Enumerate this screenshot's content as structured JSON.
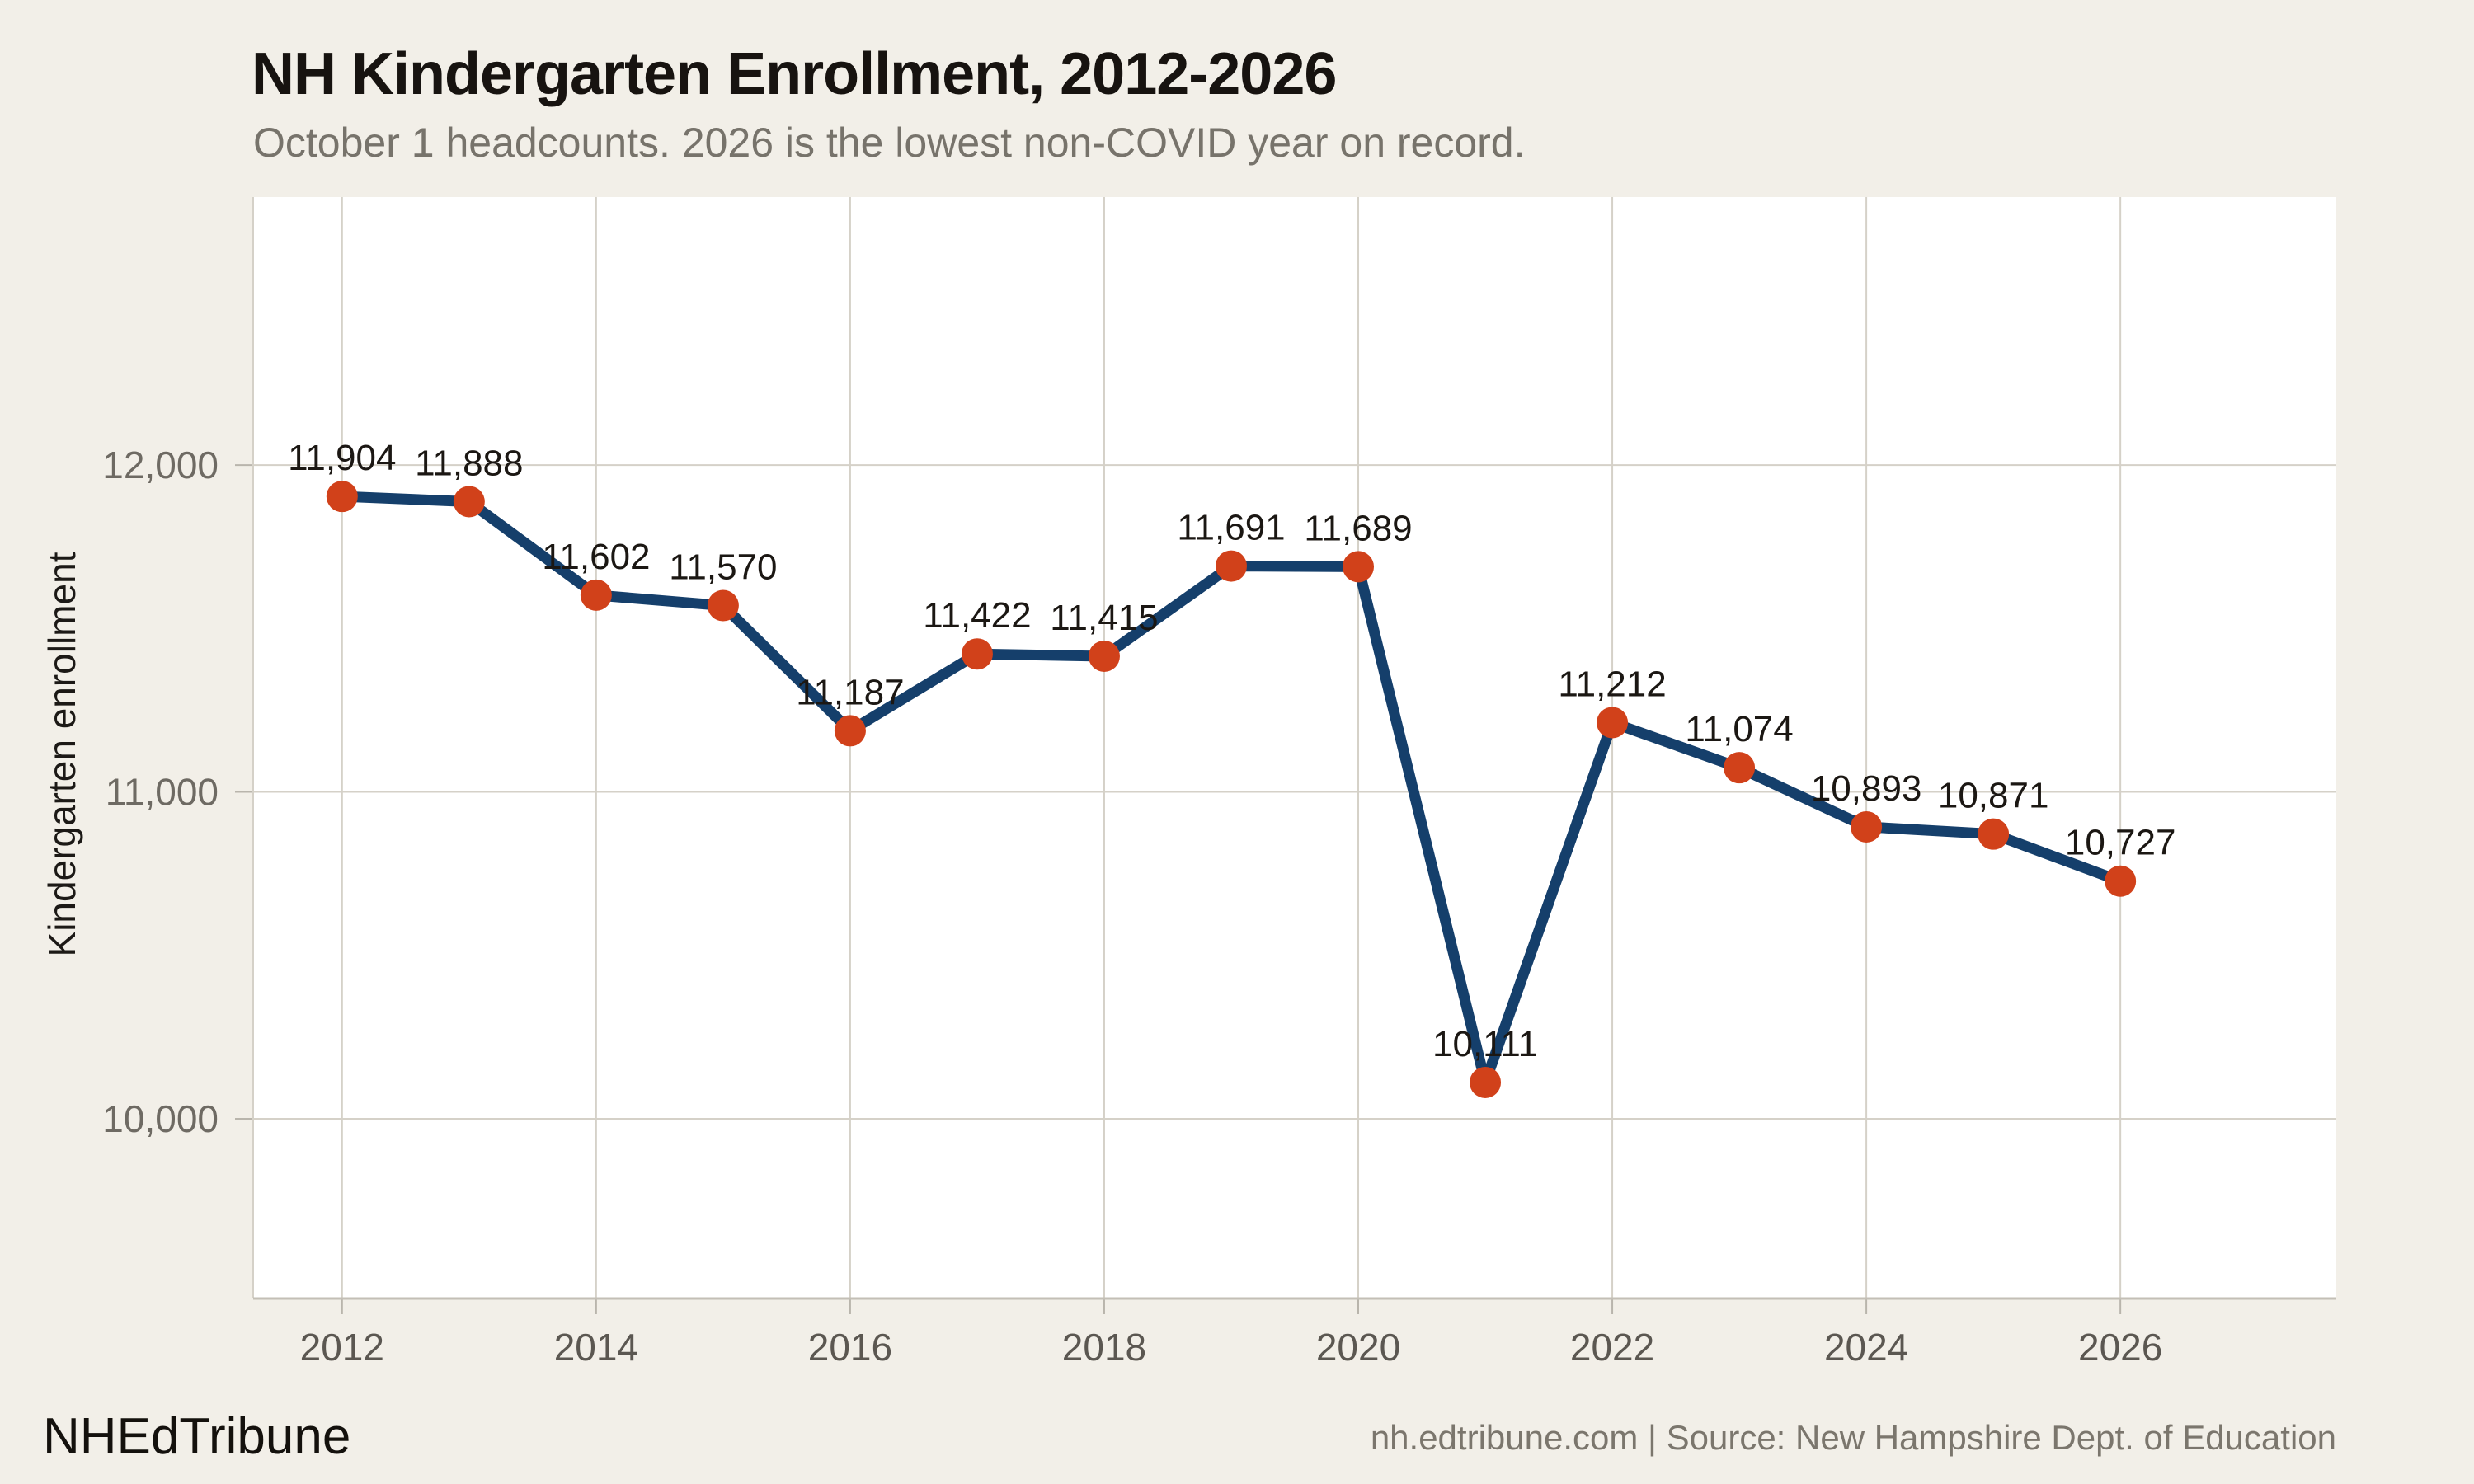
{
  "page": {
    "background": "#f2efe8"
  },
  "header": {
    "title": "NH Kindergarten Enrollment, 2012-2026",
    "subtitle": "October 1 headcounts. 2026 is the lowest non-COVID year on record."
  },
  "footer": {
    "brand": "NHEdTribune",
    "attribution": "nh.edtribune.com | Source: New Hampshire Dept. of Education"
  },
  "chart_data": {
    "type": "line",
    "title": "NH Kindergarten Enrollment, 2012-2026",
    "subtitle": "October 1 headcounts. 2026 is the lowest non-COVID year on record.",
    "ylabel": "Kindergarten enrollment",
    "xlabel": "",
    "x": [
      2012,
      2013,
      2014,
      2015,
      2016,
      2017,
      2018,
      2019,
      2020,
      2021,
      2022,
      2023,
      2024,
      2025,
      2026
    ],
    "values": [
      11904,
      11888,
      11602,
      11570,
      11187,
      11422,
      11415,
      11691,
      11689,
      10111,
      11212,
      11074,
      10893,
      10871,
      10727
    ],
    "point_labels": [
      "11,904",
      "11,888",
      "11,602",
      "11,570",
      "11,187",
      "11,422",
      "11,415",
      "11,691",
      "11,689",
      "10,111",
      "11,212",
      "11,074",
      "10,893",
      "10,871",
      "10,727"
    ],
    "xticks": [
      2012,
      2014,
      2016,
      2018,
      2020,
      2022,
      2024,
      2026
    ],
    "xtick_labels": [
      "2012",
      "2014",
      "2016",
      "2018",
      "2020",
      "2022",
      "2024",
      "2026"
    ],
    "yticks": [
      10000,
      11000,
      12000
    ],
    "ytick_labels": [
      "10,000",
      "11,000",
      "12,000"
    ],
    "xlim": [
      2011.3,
      2027.7
    ],
    "ylim": [
      9450,
      12820
    ],
    "grid": true,
    "legend": "none",
    "colors": {
      "line": "#153f6b",
      "marker": "#d1411a",
      "grid": "#d5d1c8",
      "axis": "#c3bfb6",
      "tick": "#b9b5ac",
      "plot_bg": "#ffffff"
    }
  }
}
